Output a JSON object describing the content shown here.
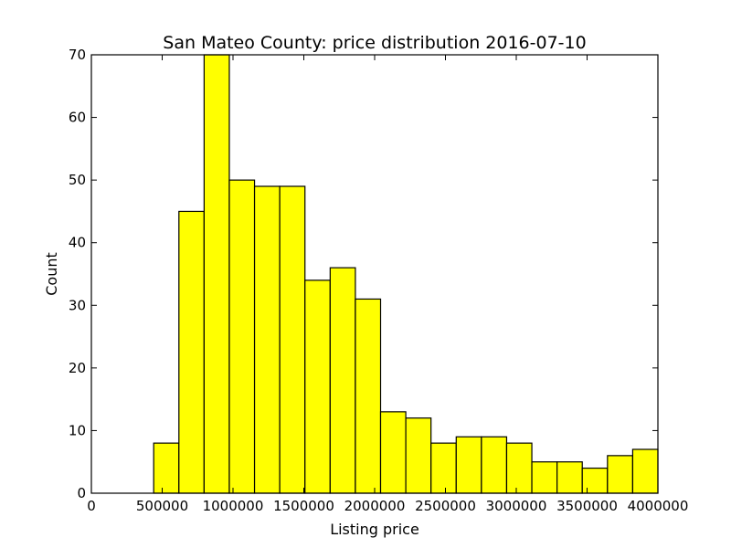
{
  "chart_data": {
    "type": "bar",
    "title": "San Mateo County: price distribution 2016-07-10",
    "xlabel": "Listing price",
    "ylabel": "Count",
    "xlim": [
      0,
      4000000
    ],
    "ylim": [
      0,
      70
    ],
    "xticks": [
      0,
      500000,
      1000000,
      1500000,
      2000000,
      2500000,
      3000000,
      3500000,
      4000000
    ],
    "xtick_labels": [
      "0",
      "500000",
      "1000000",
      "1500000",
      "2000000",
      "2500000",
      "3000000",
      "3500000",
      "4000000"
    ],
    "yticks": [
      0,
      10,
      20,
      30,
      40,
      50,
      60,
      70
    ],
    "ytick_labels": [
      "0",
      "10",
      "20",
      "30",
      "40",
      "50",
      "60",
      "70"
    ],
    "bin_start": 440000,
    "bin_width": 178000,
    "counts": [
      8,
      45,
      70,
      50,
      49,
      49,
      34,
      36,
      31,
      13,
      12,
      8,
      9,
      9,
      8,
      5,
      5,
      4,
      6,
      7
    ],
    "bar_color": "#ffff00",
    "edge_color": "#000000",
    "grid": false
  }
}
